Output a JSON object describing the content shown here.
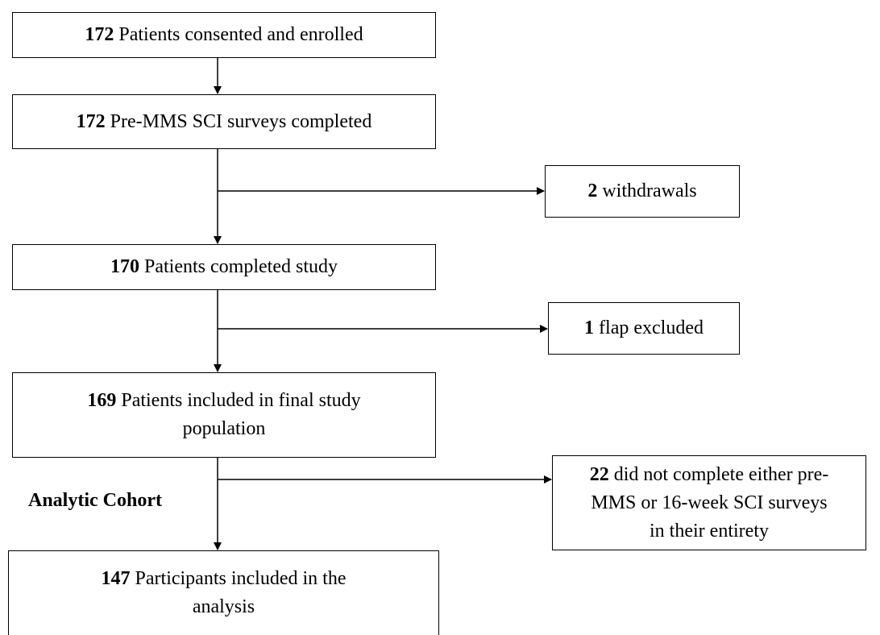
{
  "nodes": [
    {
      "count": 172,
      "label": "Patients consented and enrolled"
    },
    {
      "count": 172,
      "label": "Pre-MMS SCI surveys completed"
    },
    {
      "count": 2,
      "label": "withdrawals"
    },
    {
      "count": 170,
      "label": "Patients completed study"
    },
    {
      "count": 1,
      "label": "flap excluded"
    },
    {
      "count": 169,
      "label": "Patients included in final study population"
    },
    {
      "count": 22,
      "label": "did not complete either pre-MMS or 16-week SCI surveys in their entirety"
    },
    {
      "count": 147,
      "label": "Participants included in the analysis"
    }
  ],
  "side_label": "Analytic Cohort"
}
